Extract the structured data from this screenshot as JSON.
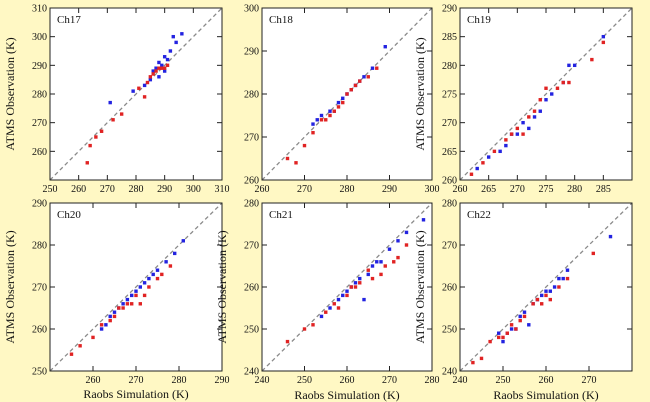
{
  "chart_data": [
    {
      "type": "scatter",
      "title": "Ch17",
      "xlabel": "",
      "ylabel": "ATMS Observation (K)",
      "xlim": [
        250,
        310
      ],
      "ylim": [
        250,
        310
      ],
      "xticks": [
        250,
        260,
        270,
        280,
        290,
        300,
        310
      ],
      "yticks": [
        260,
        270,
        280,
        290,
        300,
        310
      ],
      "grid": false,
      "reference_line": "1:1 dashed gray",
      "series": [
        {
          "color": "#2323e0",
          "points": [
            [
              271,
              277
            ],
            [
              279,
              281
            ],
            [
              283,
              283
            ],
            [
              285,
              285
            ],
            [
              286,
              288
            ],
            [
              287,
              289
            ],
            [
              288,
              291
            ],
            [
              289,
              290
            ],
            [
              290,
              293
            ],
            [
              291,
              292
            ],
            [
              292,
              295
            ],
            [
              293,
              300
            ],
            [
              294,
              298
            ],
            [
              296,
              301
            ],
            [
              290,
              288
            ],
            [
              288,
              286
            ]
          ]
        },
        {
          "color": "#e02323",
          "points": [
            [
              263,
              256
            ],
            [
              264,
              262
            ],
            [
              266,
              265
            ],
            [
              268,
              267
            ],
            [
              272,
              271
            ],
            [
              275,
              273
            ],
            [
              281,
              282
            ],
            [
              283,
              279
            ],
            [
              284,
              284
            ],
            [
              285,
              286
            ],
            [
              286,
              287
            ],
            [
              287,
              288
            ],
            [
              288,
              289
            ],
            [
              289,
              289
            ],
            [
              290,
              289
            ],
            [
              291,
              290
            ]
          ]
        }
      ]
    },
    {
      "type": "scatter",
      "title": "Ch18",
      "xlabel": "",
      "ylabel": "",
      "xlim": [
        260,
        300
      ],
      "ylim": [
        260,
        300
      ],
      "xticks": [
        260,
        270,
        280,
        290,
        300
      ],
      "yticks": [
        260,
        270,
        280,
        290,
        300
      ],
      "grid": false,
      "reference_line": "1:1 dashed gray",
      "series": [
        {
          "color": "#2323e0",
          "points": [
            [
              272,
              273
            ],
            [
              274,
              275
            ],
            [
              276,
              276
            ],
            [
              278,
              278
            ],
            [
              279,
              279
            ],
            [
              280,
              280
            ],
            [
              281,
              281
            ],
            [
              282,
              282
            ],
            [
              283,
              283
            ],
            [
              284,
              284
            ],
            [
              286,
              286
            ],
            [
              289,
              291
            ],
            [
              273,
              274
            ],
            [
              277,
              276
            ]
          ]
        },
        {
          "color": "#e02323",
          "points": [
            [
              266,
              265
            ],
            [
              268,
              264
            ],
            [
              270,
              268
            ],
            [
              272,
              271
            ],
            [
              274,
              274
            ],
            [
              275,
              274
            ],
            [
              276,
              275
            ],
            [
              277,
              276
            ],
            [
              278,
              277
            ],
            [
              279,
              278
            ],
            [
              280,
              280
            ],
            [
              281,
              281
            ],
            [
              282,
              282
            ],
            [
              283,
              283
            ],
            [
              285,
              284
            ],
            [
              287,
              286
            ]
          ]
        }
      ]
    },
    {
      "type": "scatter",
      "title": "Ch19",
      "xlabel": "",
      "ylabel": "ATMS Observation (K)",
      "xlim": [
        260,
        290
      ],
      "ylim": [
        260,
        290
      ],
      "xticks": [
        260,
        265,
        270,
        275,
        280,
        285
      ],
      "yticks": [
        260,
        265,
        270,
        275,
        280,
        285,
        290
      ],
      "grid": false,
      "reference_line": "1:1 dashed gray",
      "series": [
        {
          "color": "#2323e0",
          "points": [
            [
              263,
              262
            ],
            [
              265,
              264
            ],
            [
              267,
              265
            ],
            [
              268,
              266
            ],
            [
              269,
              268
            ],
            [
              270,
              268
            ],
            [
              271,
              270
            ],
            [
              272,
              269
            ],
            [
              273,
              271
            ],
            [
              274,
              272
            ],
            [
              275,
              274
            ],
            [
              276,
              275
            ],
            [
              278,
              277
            ],
            [
              279,
              280
            ],
            [
              280,
              280
            ],
            [
              285,
              285
            ]
          ]
        },
        {
          "color": "#e02323",
          "points": [
            [
              262,
              261
            ],
            [
              264,
              263
            ],
            [
              266,
              265
            ],
            [
              268,
              267
            ],
            [
              269,
              268
            ],
            [
              270,
              269
            ],
            [
              271,
              268
            ],
            [
              272,
              271
            ],
            [
              273,
              272
            ],
            [
              274,
              274
            ],
            [
              275,
              276
            ],
            [
              277,
              276
            ],
            [
              278,
              277
            ],
            [
              279,
              277
            ],
            [
              283,
              281
            ],
            [
              285,
              284
            ]
          ]
        }
      ]
    },
    {
      "type": "scatter",
      "title": "Ch20",
      "xlabel": "Raobs Simulation (K)",
      "ylabel": "ATMS Observation (K)",
      "xlim": [
        250,
        290
      ],
      "ylim": [
        250,
        290
      ],
      "xticks": [
        260,
        270,
        280,
        290
      ],
      "yticks": [
        250,
        260,
        270,
        280,
        290
      ],
      "grid": false,
      "reference_line": "1:1 dashed gray",
      "series": [
        {
          "color": "#2323e0",
          "points": [
            [
              262,
              260
            ],
            [
              263,
              261
            ],
            [
              264,
              263
            ],
            [
              265,
              264
            ],
            [
              266,
              265
            ],
            [
              267,
              266
            ],
            [
              268,
              267
            ],
            [
              269,
              268
            ],
            [
              270,
              269
            ],
            [
              271,
              270
            ],
            [
              272,
              271
            ],
            [
              273,
              272
            ],
            [
              274,
              273
            ],
            [
              275,
              274
            ],
            [
              277,
              276
            ],
            [
              279,
              278
            ],
            [
              281,
              281
            ]
          ]
        },
        {
          "color": "#e02323",
          "points": [
            [
              255,
              254
            ],
            [
              257,
              256
            ],
            [
              260,
              258
            ],
            [
              262,
              261
            ],
            [
              264,
              262
            ],
            [
              265,
              263
            ],
            [
              266,
              265
            ],
            [
              267,
              265
            ],
            [
              268,
              266
            ],
            [
              269,
              266
            ],
            [
              270,
              268
            ],
            [
              271,
              266
            ],
            [
              272,
              268
            ],
            [
              273,
              270
            ],
            [
              275,
              272
            ],
            [
              276,
              273
            ],
            [
              278,
              275
            ]
          ]
        }
      ]
    },
    {
      "type": "scatter",
      "title": "Ch21",
      "xlabel": "Raobs Simulation (K)",
      "ylabel": "ATMS Observation (K)",
      "xlim": [
        240,
        280
      ],
      "ylim": [
        240,
        280
      ],
      "xticks": [
        240,
        250,
        260,
        270,
        280
      ],
      "yticks": [
        240,
        250,
        260,
        270,
        280
      ],
      "grid": false,
      "reference_line": "1:1 dashed gray",
      "series": [
        {
          "color": "#2323e0",
          "points": [
            [
              254,
              253
            ],
            [
              256,
              255
            ],
            [
              258,
              257
            ],
            [
              259,
              258
            ],
            [
              260,
              259
            ],
            [
              261,
              260
            ],
            [
              262,
              261
            ],
            [
              263,
              262
            ],
            [
              264,
              257
            ],
            [
              265,
              263
            ],
            [
              266,
              265
            ],
            [
              267,
              266
            ],
            [
              268,
              266
            ],
            [
              270,
              269
            ],
            [
              272,
              271
            ],
            [
              274,
              273
            ],
            [
              278,
              276
            ]
          ]
        },
        {
          "color": "#e02323",
          "points": [
            [
              246,
              247
            ],
            [
              250,
              250
            ],
            [
              252,
              251
            ],
            [
              255,
              254
            ],
            [
              257,
              256
            ],
            [
              258,
              255
            ],
            [
              260,
              258
            ],
            [
              261,
              260
            ],
            [
              262,
              260
            ],
            [
              263,
              261
            ],
            [
              265,
              264
            ],
            [
              266,
              262
            ],
            [
              268,
              263
            ],
            [
              269,
              265
            ],
            [
              271,
              266
            ],
            [
              272,
              267
            ],
            [
              274,
              270
            ]
          ]
        }
      ]
    },
    {
      "type": "scatter",
      "title": "Ch22",
      "xlabel": "Raobs Simulation (K)",
      "ylabel": "ATMS Observation (K)",
      "xlim": [
        240,
        280
      ],
      "ylim": [
        240,
        280
      ],
      "xticks": [
        240,
        250,
        260,
        270
      ],
      "yticks": [
        240,
        250,
        260,
        270,
        280
      ],
      "grid": false,
      "reference_line": "1:1 dashed gray",
      "series": [
        {
          "color": "#2323e0",
          "points": [
            [
              249,
              249
            ],
            [
              250,
              247
            ],
            [
              251,
              249
            ],
            [
              252,
              250
            ],
            [
              253,
              250
            ],
            [
              254,
              253
            ],
            [
              255,
              254
            ],
            [
              256,
              251
            ],
            [
              257,
              256
            ],
            [
              258,
              257
            ],
            [
              259,
              258
            ],
            [
              260,
              259
            ],
            [
              261,
              259
            ],
            [
              262,
              260
            ],
            [
              263,
              262
            ],
            [
              264,
              262
            ],
            [
              265,
              264
            ],
            [
              275,
              272
            ]
          ]
        },
        {
          "color": "#e02323",
          "points": [
            [
              243,
              242
            ],
            [
              245,
              243
            ],
            [
              247,
              247
            ],
            [
              249,
              248
            ],
            [
              250,
              248
            ],
            [
              251,
              249
            ],
            [
              252,
              251
            ],
            [
              253,
              250
            ],
            [
              254,
              252
            ],
            [
              255,
              253
            ],
            [
              257,
              256
            ],
            [
              258,
              257
            ],
            [
              259,
              256
            ],
            [
              260,
              258
            ],
            [
              261,
              257
            ],
            [
              263,
              260
            ],
            [
              265,
              262
            ],
            [
              271,
              268
            ]
          ]
        }
      ]
    }
  ]
}
